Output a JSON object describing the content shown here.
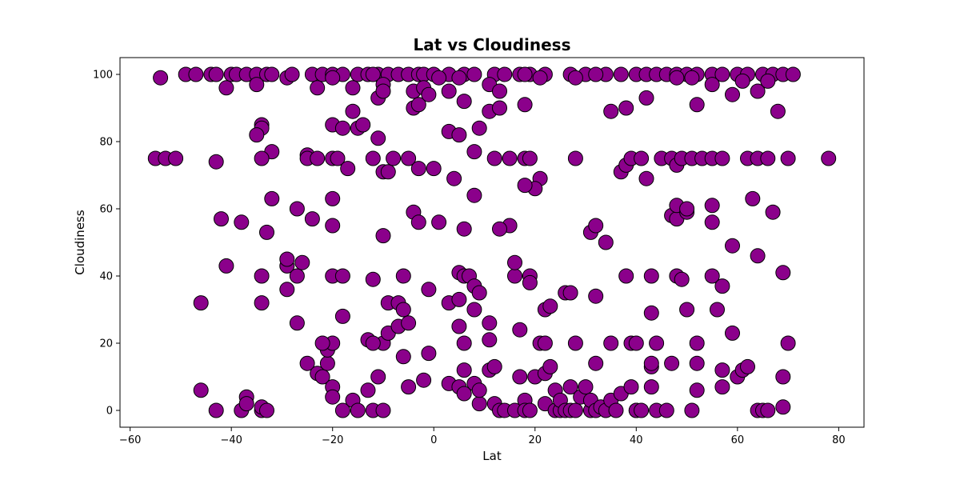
{
  "chart_data": {
    "type": "scatter",
    "title": "Lat vs Cloudiness",
    "xlabel": "Lat",
    "ylabel": "Cloudiness",
    "xlim": [
      -62,
      85
    ],
    "ylim": [
      -5,
      105
    ],
    "xticks": [
      -60,
      -40,
      -20,
      0,
      20,
      40,
      60,
      80
    ],
    "yticks": [
      0,
      20,
      40,
      60,
      80,
      100
    ],
    "grid": false,
    "marker_color": "#8b008b",
    "marker_edge_color": "#000000",
    "points": [
      [
        -54,
        99
      ],
      [
        -49,
        100
      ],
      [
        -47,
        100
      ],
      [
        -44,
        100
      ],
      [
        -43,
        100
      ],
      [
        -40,
        100
      ],
      [
        -39,
        100
      ],
      [
        -37,
        100
      ],
      [
        -35,
        100
      ],
      [
        -33,
        100
      ],
      [
        -32,
        100
      ],
      [
        -29,
        99
      ],
      [
        -28,
        100
      ],
      [
        -24,
        100
      ],
      [
        -22,
        100
      ],
      [
        -20,
        100
      ],
      [
        -18,
        100
      ],
      [
        -15,
        100
      ],
      [
        -13,
        100
      ],
      [
        -11,
        100
      ],
      [
        -9,
        100
      ],
      [
        -7,
        100
      ],
      [
        -5,
        100
      ],
      [
        -3,
        100
      ],
      [
        -2,
        100
      ],
      [
        0,
        100
      ],
      [
        3,
        100
      ],
      [
        6,
        100
      ],
      [
        8,
        100
      ],
      [
        12,
        100
      ],
      [
        14,
        100
      ],
      [
        17,
        100
      ],
      [
        19,
        100
      ],
      [
        22,
        100
      ],
      [
        27,
        100
      ],
      [
        30,
        100
      ],
      [
        34,
        100
      ],
      [
        37,
        100
      ],
      [
        40,
        100
      ],
      [
        42,
        100
      ],
      [
        44,
        100
      ],
      [
        46,
        100
      ],
      [
        48,
        100
      ],
      [
        50,
        100
      ],
      [
        52,
        100
      ],
      [
        55,
        100
      ],
      [
        57,
        100
      ],
      [
        60,
        100
      ],
      [
        62,
        100
      ],
      [
        65,
        100
      ],
      [
        67,
        100
      ],
      [
        69,
        100
      ],
      [
        71,
        100
      ],
      [
        -41,
        96
      ],
      [
        -35,
        97
      ],
      [
        -23,
        96
      ],
      [
        -20,
        99
      ],
      [
        -16,
        96
      ],
      [
        -12,
        100
      ],
      [
        -10,
        97
      ],
      [
        -4,
        95
      ],
      [
        -2,
        96
      ],
      [
        1,
        99
      ],
      [
        3,
        95
      ],
      [
        5,
        99
      ],
      [
        11,
        97
      ],
      [
        13,
        95
      ],
      [
        18,
        100
      ],
      [
        21,
        99
      ],
      [
        28,
        99
      ],
      [
        32,
        100
      ],
      [
        48,
        99
      ],
      [
        51,
        99
      ],
      [
        55,
        97
      ],
      [
        59,
        94
      ],
      [
        61,
        98
      ],
      [
        64,
        95
      ],
      [
        66,
        98
      ],
      [
        -11,
        93
      ],
      [
        -10,
        95
      ],
      [
        -4,
        90
      ],
      [
        -3,
        91
      ],
      [
        -1,
        94
      ],
      [
        6,
        92
      ],
      [
        9,
        84
      ],
      [
        11,
        89
      ],
      [
        13,
        90
      ],
      [
        18,
        91
      ],
      [
        35,
        89
      ],
      [
        38,
        90
      ],
      [
        42,
        93
      ],
      [
        52,
        91
      ],
      [
        68,
        89
      ],
      [
        -34,
        85
      ],
      [
        -34,
        84
      ],
      [
        -35,
        82
      ],
      [
        -32,
        77
      ],
      [
        -20,
        85
      ],
      [
        -18,
        84
      ],
      [
        -16,
        89
      ],
      [
        -15,
        84
      ],
      [
        -14,
        85
      ],
      [
        -11,
        81
      ],
      [
        3,
        83
      ],
      [
        5,
        82
      ],
      [
        8,
        77
      ],
      [
        -55,
        75
      ],
      [
        -53,
        75
      ],
      [
        -51,
        75
      ],
      [
        -43,
        74
      ],
      [
        -34,
        75
      ],
      [
        -25,
        76
      ],
      [
        -25,
        75
      ],
      [
        -23,
        75
      ],
      [
        -20,
        75
      ],
      [
        -19,
        75
      ],
      [
        -17,
        72
      ],
      [
        -12,
        75
      ],
      [
        -10,
        71
      ],
      [
        -9,
        71
      ],
      [
        -8,
        75
      ],
      [
        -5,
        75
      ],
      [
        -3,
        72
      ],
      [
        0,
        72
      ],
      [
        12,
        75
      ],
      [
        15,
        75
      ],
      [
        18,
        75
      ],
      [
        19,
        75
      ],
      [
        21,
        69
      ],
      [
        20,
        66
      ],
      [
        18,
        67
      ],
      [
        28,
        75
      ],
      [
        37,
        71
      ],
      [
        38,
        73
      ],
      [
        39,
        75
      ],
      [
        41,
        75
      ],
      [
        42,
        69
      ],
      [
        45,
        75
      ],
      [
        47,
        75
      ],
      [
        48,
        73
      ],
      [
        49,
        75
      ],
      [
        51,
        75
      ],
      [
        53,
        75
      ],
      [
        55,
        75
      ],
      [
        57,
        75
      ],
      [
        62,
        75
      ],
      [
        64,
        75
      ],
      [
        66,
        75
      ],
      [
        70,
        75
      ],
      [
        78,
        75
      ],
      [
        -42,
        57
      ],
      [
        -38,
        56
      ],
      [
        -33,
        53
      ],
      [
        -32,
        63
      ],
      [
        -27,
        60
      ],
      [
        -24,
        57
      ],
      [
        -20,
        55
      ],
      [
        -20,
        63
      ],
      [
        -10,
        52
      ],
      [
        -4,
        59
      ],
      [
        -3,
        56
      ],
      [
        1,
        56
      ],
      [
        4,
        69
      ],
      [
        6,
        54
      ],
      [
        8,
        64
      ],
      [
        15,
        55
      ],
      [
        31,
        53
      ],
      [
        32,
        55
      ],
      [
        34,
        50
      ],
      [
        47,
        58
      ],
      [
        48,
        57
      ],
      [
        48,
        61
      ],
      [
        50,
        59
      ],
      [
        50,
        60
      ],
      [
        55,
        56
      ],
      [
        55,
        61
      ],
      [
        59,
        49
      ],
      [
        63,
        63
      ],
      [
        64,
        46
      ],
      [
        67,
        59
      ],
      [
        -46,
        32
      ],
      [
        -41,
        43
      ],
      [
        -34,
        40
      ],
      [
        -34,
        32
      ],
      [
        -29,
        36
      ],
      [
        -29,
        43
      ],
      [
        -29,
        45
      ],
      [
        -27,
        40
      ],
      [
        -26,
        44
      ],
      [
        -27,
        26
      ],
      [
        -20,
        40
      ],
      [
        -18,
        40
      ],
      [
        -18,
        28
      ],
      [
        -12,
        39
      ],
      [
        -10,
        20
      ],
      [
        -9,
        23
      ],
      [
        -9,
        32
      ],
      [
        -7,
        25
      ],
      [
        -7,
        32
      ],
      [
        -6,
        30
      ],
      [
        -6,
        40
      ],
      [
        -6,
        16
      ],
      [
        -5,
        26
      ],
      [
        -1,
        36
      ],
      [
        -1,
        17
      ],
      [
        3,
        32
      ],
      [
        5,
        33
      ],
      [
        5,
        41
      ],
      [
        6,
        40
      ],
      [
        7,
        40
      ],
      [
        8,
        37
      ],
      [
        9,
        35
      ],
      [
        8,
        30
      ],
      [
        5,
        25
      ],
      [
        6,
        20
      ],
      [
        11,
        26
      ],
      [
        11,
        21
      ],
      [
        13,
        54
      ],
      [
        16,
        40
      ],
      [
        16,
        44
      ],
      [
        17,
        24
      ],
      [
        19,
        40
      ],
      [
        19,
        38
      ],
      [
        22,
        30
      ],
      [
        23,
        31
      ],
      [
        26,
        35
      ],
      [
        27,
        35
      ],
      [
        28,
        20
      ],
      [
        32,
        34
      ],
      [
        35,
        20
      ],
      [
        38,
        40
      ],
      [
        39,
        20
      ],
      [
        40,
        20
      ],
      [
        43,
        29
      ],
      [
        43,
        40
      ],
      [
        44,
        20
      ],
      [
        48,
        40
      ],
      [
        49,
        39
      ],
      [
        50,
        30
      ],
      [
        52,
        20
      ],
      [
        55,
        40
      ],
      [
        56,
        30
      ],
      [
        57,
        37
      ],
      [
        59,
        23
      ],
      [
        69,
        41
      ],
      [
        70,
        20
      ],
      [
        -46,
        6
      ],
      [
        -43,
        0
      ],
      [
        -38,
        0
      ],
      [
        -37,
        4
      ],
      [
        -37,
        2
      ],
      [
        -34,
        0
      ],
      [
        -34,
        1
      ],
      [
        -33,
        0
      ],
      [
        -25,
        14
      ],
      [
        -23,
        11
      ],
      [
        -22,
        10
      ],
      [
        -21,
        14
      ],
      [
        -21,
        18
      ],
      [
        -20,
        20
      ],
      [
        -22,
        20
      ],
      [
        -20,
        7
      ],
      [
        -20,
        4
      ],
      [
        -18,
        0
      ],
      [
        -16,
        3
      ],
      [
        -15,
        0
      ],
      [
        -13,
        6
      ],
      [
        -12,
        0
      ],
      [
        -13,
        21
      ],
      [
        -11,
        10
      ],
      [
        -10,
        0
      ],
      [
        -12,
        20
      ],
      [
        -5,
        7
      ],
      [
        -2,
        9
      ],
      [
        3,
        8
      ],
      [
        5,
        7
      ],
      [
        6,
        12
      ],
      [
        6,
        5
      ],
      [
        8,
        8
      ],
      [
        9,
        2
      ],
      [
        9,
        6
      ],
      [
        11,
        12
      ],
      [
        12,
        13
      ],
      [
        12,
        2
      ],
      [
        13,
        0
      ],
      [
        14,
        0
      ],
      [
        16,
        0
      ],
      [
        17,
        10
      ],
      [
        18,
        3
      ],
      [
        18,
        0
      ],
      [
        19,
        0
      ],
      [
        20,
        10
      ],
      [
        21,
        20
      ],
      [
        22,
        20
      ],
      [
        22,
        2
      ],
      [
        22,
        11
      ],
      [
        23,
        13
      ],
      [
        24,
        6
      ],
      [
        24,
        0
      ],
      [
        25,
        0
      ],
      [
        25,
        3
      ],
      [
        26,
        0
      ],
      [
        27,
        7
      ],
      [
        27,
        0
      ],
      [
        28,
        0
      ],
      [
        29,
        4
      ],
      [
        30,
        7
      ],
      [
        31,
        0
      ],
      [
        31,
        3
      ],
      [
        32,
        0
      ],
      [
        32,
        14
      ],
      [
        33,
        1
      ],
      [
        34,
        0
      ],
      [
        35,
        3
      ],
      [
        36,
        0
      ],
      [
        37,
        5
      ],
      [
        39,
        7
      ],
      [
        40,
        0
      ],
      [
        40,
        0
      ],
      [
        41,
        0
      ],
      [
        43,
        13
      ],
      [
        43,
        14
      ],
      [
        43,
        7
      ],
      [
        44,
        0
      ],
      [
        46,
        0
      ],
      [
        47,
        14
      ],
      [
        51,
        0
      ],
      [
        52,
        6
      ],
      [
        52,
        14
      ],
      [
        57,
        12
      ],
      [
        57,
        7
      ],
      [
        60,
        10
      ],
      [
        61,
        12
      ],
      [
        62,
        13
      ],
      [
        64,
        0
      ],
      [
        65,
        0
      ],
      [
        66,
        0
      ],
      [
        69,
        10
      ],
      [
        69,
        1
      ]
    ]
  }
}
